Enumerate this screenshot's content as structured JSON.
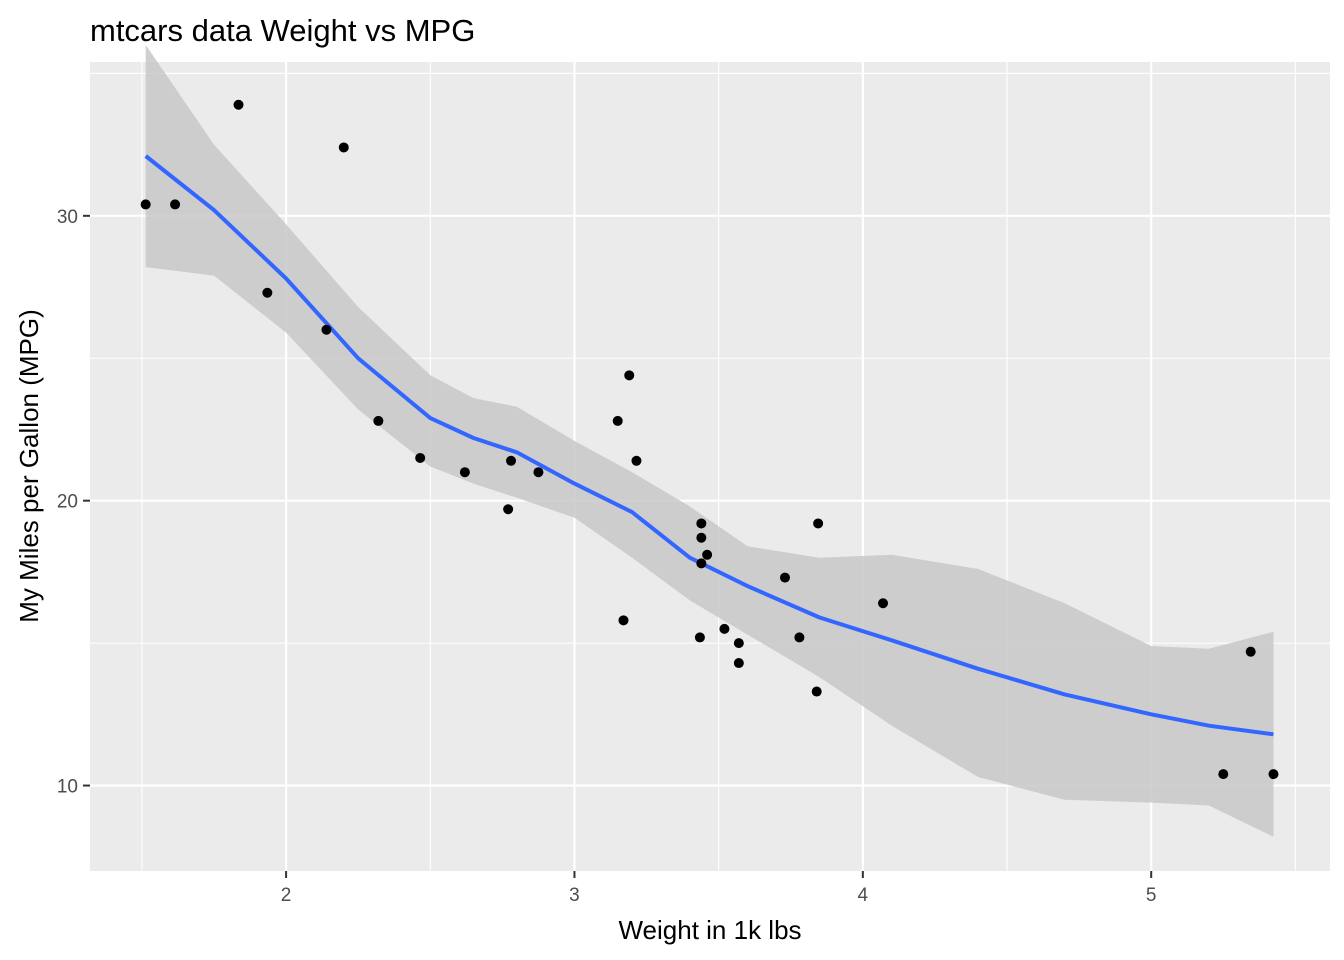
{
  "chart_data": {
    "type": "scatter",
    "title": "mtcars data Weight vs MPG",
    "xlabel": "Weight in 1k lbs",
    "ylabel": "My Miles per Gallon (MPG)",
    "xlim": [
      1.32,
      5.62
    ],
    "ylim": [
      7.0,
      35.4
    ],
    "xticks": [
      2,
      3,
      4,
      5
    ],
    "xtick_labels": [
      "2",
      "3",
      "4",
      "5"
    ],
    "yticks": [
      10,
      20,
      30
    ],
    "ytick_labels": [
      "10",
      "20",
      "30"
    ],
    "grid": true,
    "legend": "none",
    "colors": {
      "panel": "#ebebeb",
      "grid": "#ffffff",
      "points": "#000000",
      "smooth_line": "#3366ff",
      "confidence_band": "#c8c8c8",
      "tick": "#333333"
    },
    "points": [
      {
        "x": 2.62,
        "y": 21.0
      },
      {
        "x": 2.875,
        "y": 21.0
      },
      {
        "x": 2.32,
        "y": 22.8
      },
      {
        "x": 3.215,
        "y": 21.4
      },
      {
        "x": 3.44,
        "y": 18.7
      },
      {
        "x": 3.46,
        "y": 18.1
      },
      {
        "x": 3.57,
        "y": 14.3
      },
      {
        "x": 3.19,
        "y": 24.4
      },
      {
        "x": 3.15,
        "y": 22.8
      },
      {
        "x": 3.44,
        "y": 19.2
      },
      {
        "x": 3.44,
        "y": 17.8
      },
      {
        "x": 4.07,
        "y": 16.4
      },
      {
        "x": 3.73,
        "y": 17.3
      },
      {
        "x": 3.78,
        "y": 15.2
      },
      {
        "x": 5.25,
        "y": 10.4
      },
      {
        "x": 5.424,
        "y": 10.4
      },
      {
        "x": 5.345,
        "y": 14.7
      },
      {
        "x": 2.2,
        "y": 32.4
      },
      {
        "x": 1.615,
        "y": 30.4
      },
      {
        "x": 1.835,
        "y": 33.9
      },
      {
        "x": 2.465,
        "y": 21.5
      },
      {
        "x": 3.52,
        "y": 15.5
      },
      {
        "x": 3.435,
        "y": 15.2
      },
      {
        "x": 3.84,
        "y": 13.3
      },
      {
        "x": 3.845,
        "y": 19.2
      },
      {
        "x": 1.935,
        "y": 27.3
      },
      {
        "x": 2.14,
        "y": 26.0
      },
      {
        "x": 1.513,
        "y": 30.4
      },
      {
        "x": 3.17,
        "y": 15.8
      },
      {
        "x": 2.77,
        "y": 19.7
      },
      {
        "x": 3.57,
        "y": 15.0
      },
      {
        "x": 2.78,
        "y": 21.4
      }
    ],
    "smooth": {
      "x": [
        1.513,
        1.75,
        2.0,
        2.25,
        2.5,
        2.65,
        2.8,
        3.0,
        3.2,
        3.4,
        3.6,
        3.85,
        4.1,
        4.4,
        4.7,
        5.0,
        5.2,
        5.424
      ],
      "y": [
        32.1,
        30.2,
        27.8,
        25.0,
        22.9,
        22.2,
        21.7,
        20.6,
        19.6,
        18.0,
        17.0,
        15.9,
        15.1,
        14.1,
        13.2,
        12.5,
        12.1,
        11.8
      ],
      "lower": [
        28.2,
        27.9,
        25.9,
        23.2,
        21.2,
        20.6,
        20.1,
        19.4,
        18.0,
        16.5,
        15.3,
        13.8,
        12.1,
        10.3,
        9.5,
        9.4,
        9.3,
        8.2
      ],
      "upper": [
        36.0,
        32.5,
        29.7,
        26.8,
        24.4,
        23.6,
        23.3,
        22.1,
        21.0,
        19.8,
        18.4,
        18.0,
        18.1,
        17.6,
        16.4,
        14.9,
        14.8,
        15.4
      ]
    }
  }
}
